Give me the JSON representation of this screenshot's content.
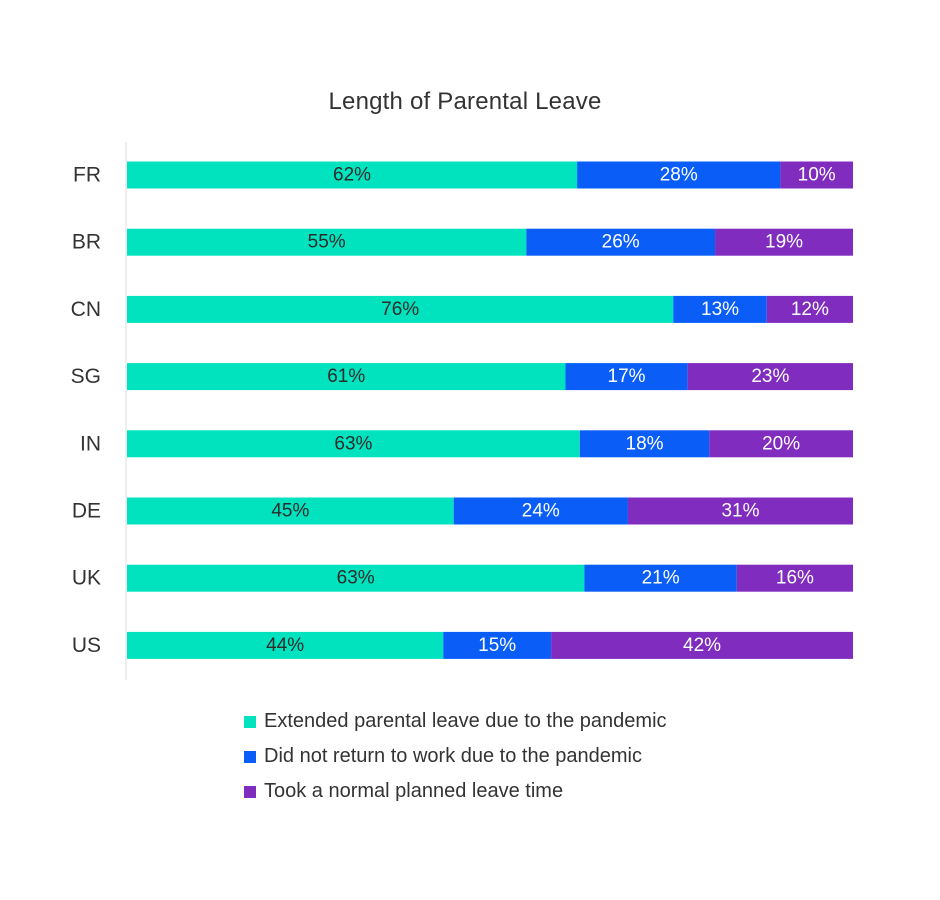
{
  "chart_data": {
    "type": "bar",
    "orientation": "horizontal",
    "stacked": true,
    "title": "Length of Parental Leave",
    "xlabel": "",
    "ylabel": "",
    "categories": [
      "FR",
      "BR",
      "CN",
      "SG",
      "IN",
      "DE",
      "UK",
      "US"
    ],
    "series": [
      {
        "name": "Extended parental leave due to the pandemic",
        "color": "#00E3BE",
        "values": [
          62,
          55,
          76,
          61,
          63,
          45,
          63,
          44
        ]
      },
      {
        "name": "Did not return to work due to the pandemic",
        "color": "#0A5EF7",
        "values": [
          28,
          26,
          13,
          17,
          18,
          24,
          21,
          15
        ]
      },
      {
        "name": "Took a normal planned leave time",
        "color": "#7F2CBF",
        "values": [
          10,
          19,
          12,
          23,
          20,
          31,
          16,
          42
        ]
      }
    ],
    "value_suffix": "%",
    "grid": false,
    "legend_position": "bottom"
  }
}
